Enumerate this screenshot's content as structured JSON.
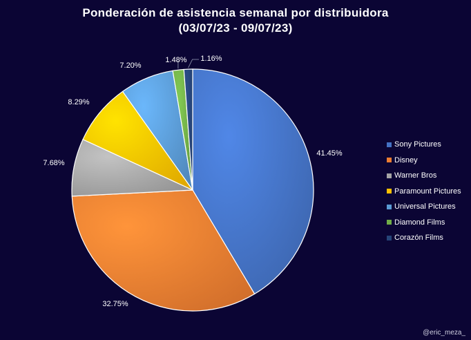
{
  "chart_data": {
    "type": "pie",
    "title_line1": "Ponderación de asistencia semanal por distribuidora",
    "title_line2": "(03/07/23 - 09/07/23)",
    "series": [
      {
        "name": "Sony Pictures",
        "value": 41.45,
        "label": "41.45%",
        "color": "#4472c4"
      },
      {
        "name": "Disney",
        "value": 32.75,
        "label": "32.75%",
        "color": "#ed7d31"
      },
      {
        "name": "Warner Bros",
        "value": 7.68,
        "label": "7.68%",
        "color": "#a5a5a5"
      },
      {
        "name": "Paramount Pictures",
        "value": 8.29,
        "label": "8.29%",
        "color": "#ffc000"
      },
      {
        "name": "Universal Pictures",
        "value": 7.2,
        "label": "7.20%",
        "color": "#5b9bd5"
      },
      {
        "name": "Diamond Films",
        "value": 1.48,
        "label": "1.48%",
        "color": "#70ad47"
      },
      {
        "name": "Corazón Films",
        "value": 1.16,
        "label": "1.16%",
        "color": "#264478"
      }
    ],
    "legend_position": "right"
  },
  "watermark": "@eric_meza_"
}
